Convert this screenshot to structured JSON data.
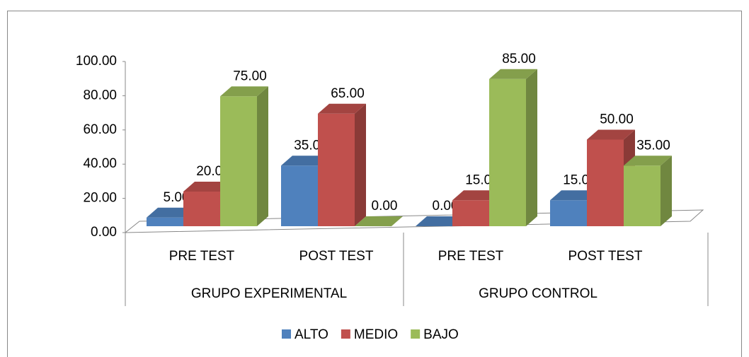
{
  "chart_data": {
    "type": "bar3d",
    "categories": [
      "PRE TEST",
      "POST TEST",
      "PRE TEST",
      "POST TEST"
    ],
    "groups": [
      "GRUPO EXPERIMENTAL",
      "GRUPO CONTROL"
    ],
    "series": [
      {
        "name": "ALTO",
        "color": "#4f81bd",
        "values": [
          5,
          35,
          0,
          15
        ],
        "value_labels": [
          "5.00",
          "35.00",
          "0.00",
          "15.00"
        ]
      },
      {
        "name": "MEDIO",
        "color": "#c0504d",
        "values": [
          20,
          65,
          15,
          50
        ],
        "value_labels": [
          "20.00",
          "65.00",
          "15.00",
          "50.00"
        ]
      },
      {
        "name": "BAJO",
        "color": "#9bbb59",
        "values": [
          75,
          0,
          85,
          35
        ],
        "value_labels": [
          "75.00",
          "0.00",
          "85.00",
          "35.00"
        ]
      }
    ],
    "ylim": [
      0,
      100
    ],
    "yticks": [
      {
        "value": 0,
        "label": "0.00"
      },
      {
        "value": 20,
        "label": "20.00"
      },
      {
        "value": 40,
        "label": "40.00"
      },
      {
        "value": 60,
        "label": "60.00"
      },
      {
        "value": 80,
        "label": "80.00"
      },
      {
        "value": 100,
        "label": "100.00"
      }
    ],
    "legend": "bottom"
  }
}
